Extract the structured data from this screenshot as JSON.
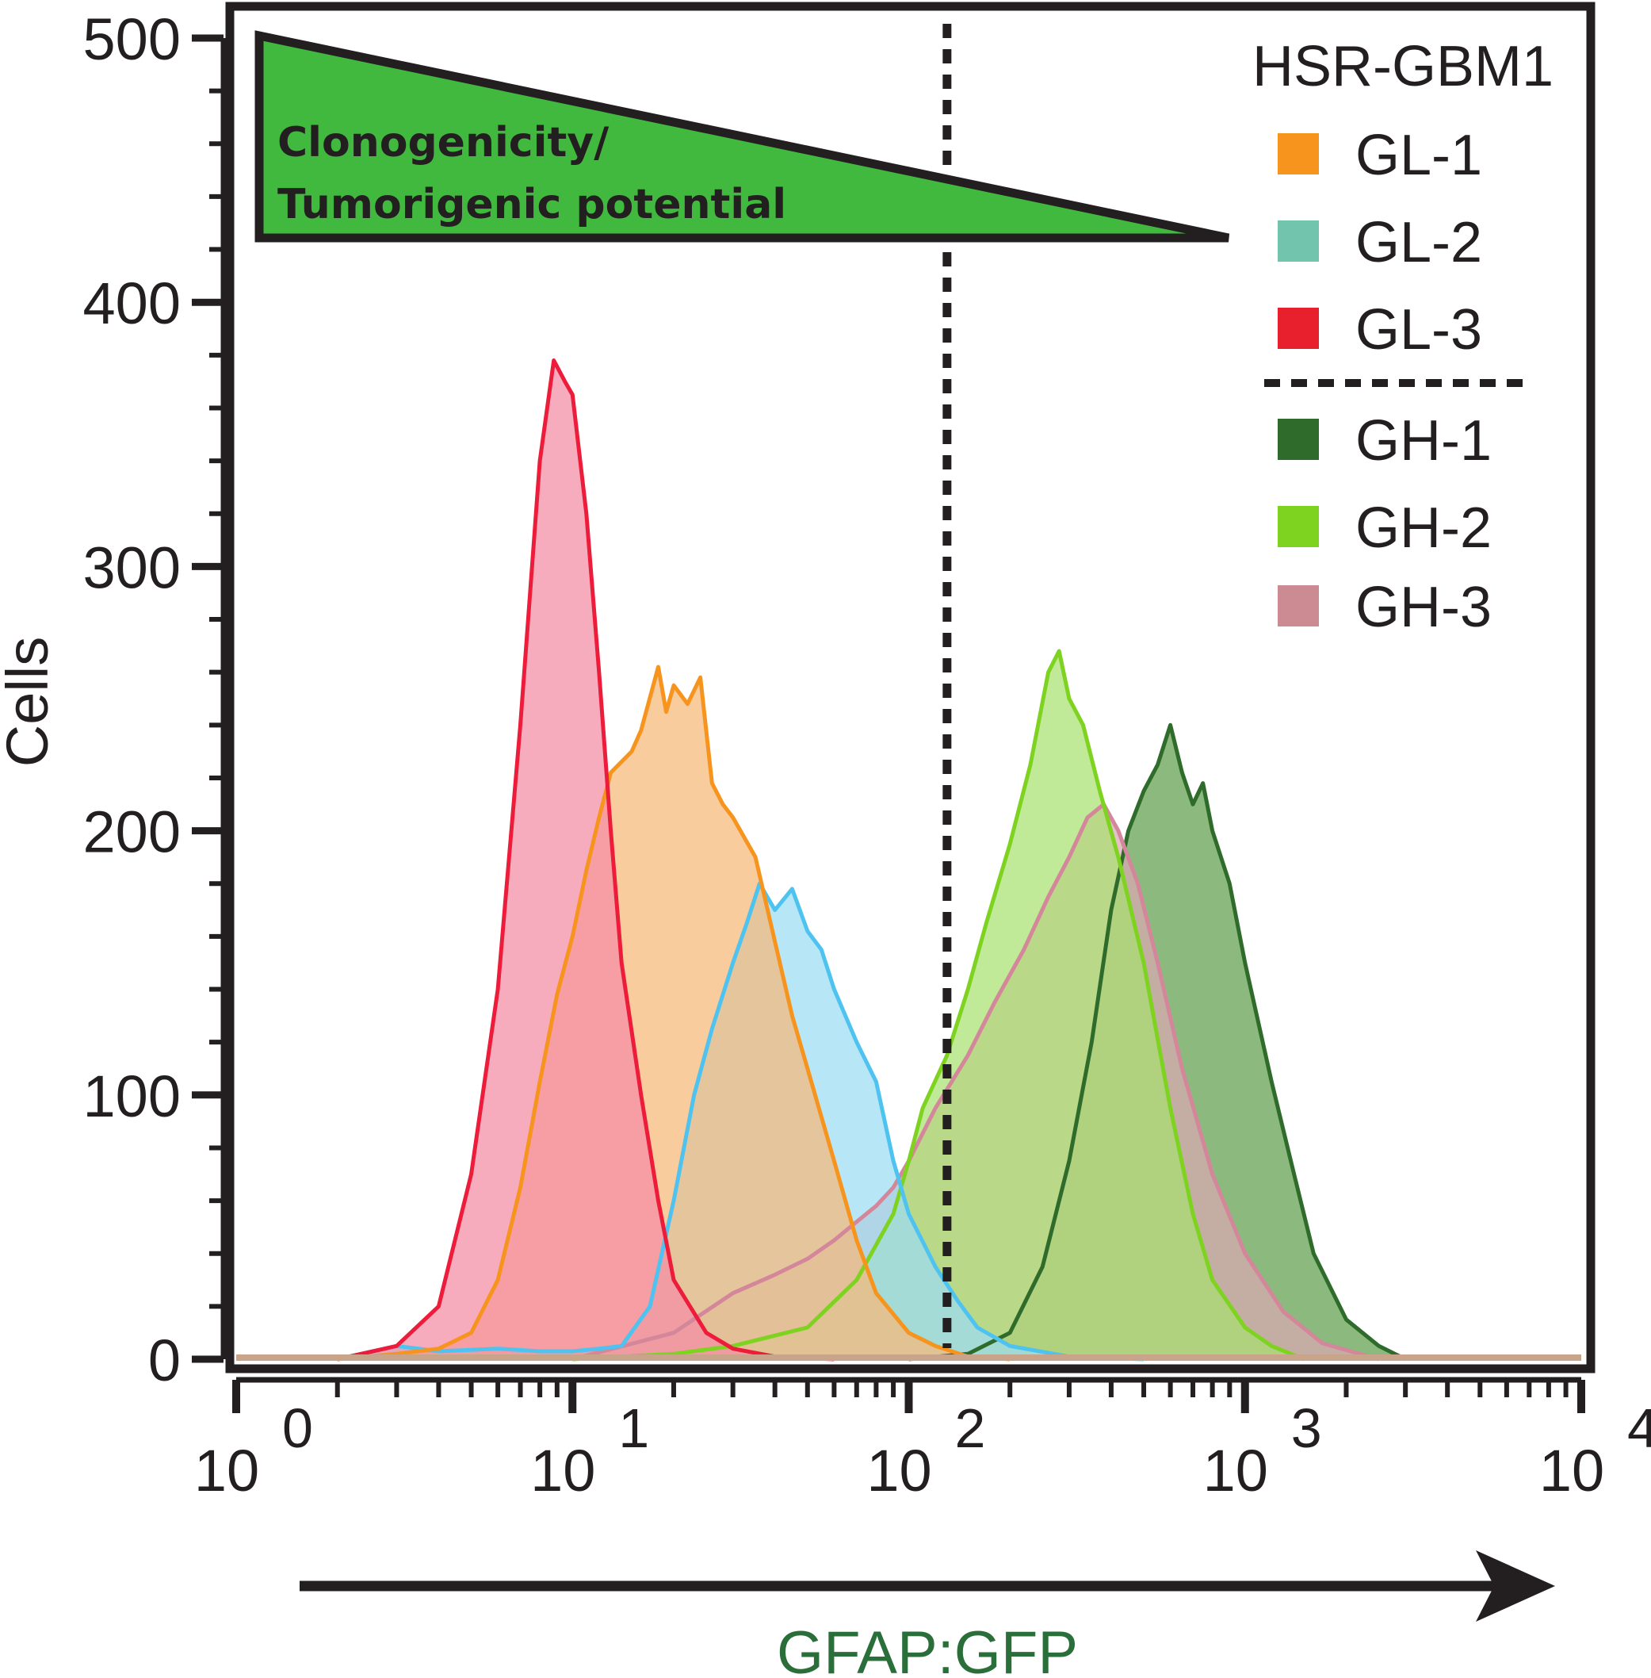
{
  "chart_data": {
    "type": "area",
    "title": "",
    "xlabel": "GFAP:GFP",
    "ylabel": "Cells",
    "xscale": "log",
    "xlim": [
      1,
      10000
    ],
    "ylim": [
      0,
      500
    ],
    "x_ticks": [
      {
        "base": "10",
        "exp": "0",
        "value": 1
      },
      {
        "base": "10",
        "exp": "1",
        "value": 10
      },
      {
        "base": "10",
        "exp": "2",
        "value": 100
      },
      {
        "base": "10",
        "exp": "3",
        "value": 1000
      },
      {
        "base": "10",
        "exp": "4",
        "value": 10000
      }
    ],
    "y_ticks": [
      "0",
      "100",
      "200",
      "300",
      "400",
      "500"
    ],
    "legend_title": "HSR-GBM1",
    "legend_position": "top-right",
    "annotation": {
      "line1": "Clonogenicity/",
      "line2": "Tumorigenic potential",
      "fill_color": "#41b83e"
    },
    "threshold_x": 130,
    "series": [
      {
        "name": "GL-1",
        "color": "#f7941d",
        "fill": "#f7b978",
        "points": [
          [
            2,
            0
          ],
          [
            3,
            2
          ],
          [
            4,
            4
          ],
          [
            5,
            10
          ],
          [
            6,
            30
          ],
          [
            7,
            65
          ],
          [
            8,
            105
          ],
          [
            9,
            138
          ],
          [
            10,
            160
          ],
          [
            11,
            185
          ],
          [
            12,
            205
          ],
          [
            13,
            222
          ],
          [
            15,
            230
          ],
          [
            16,
            238
          ],
          [
            18,
            262
          ],
          [
            19,
            245
          ],
          [
            20,
            255
          ],
          [
            22,
            248
          ],
          [
            24,
            258
          ],
          [
            26,
            218
          ],
          [
            28,
            210
          ],
          [
            30,
            205
          ],
          [
            35,
            190
          ],
          [
            40,
            158
          ],
          [
            45,
            130
          ],
          [
            50,
            110
          ],
          [
            60,
            75
          ],
          [
            70,
            45
          ],
          [
            80,
            25
          ],
          [
            100,
            10
          ],
          [
            120,
            5
          ],
          [
            150,
            1
          ],
          [
            200,
            0
          ]
        ]
      },
      {
        "name": "GL-2",
        "color": "#4fc3f0",
        "fill": "#9bdcf4",
        "points": [
          [
            2,
            0
          ],
          [
            3,
            5
          ],
          [
            4,
            3
          ],
          [
            6,
            4
          ],
          [
            8,
            3
          ],
          [
            10,
            3
          ],
          [
            12,
            4
          ],
          [
            14,
            5
          ],
          [
            17,
            20
          ],
          [
            20,
            60
          ],
          [
            23,
            100
          ],
          [
            26,
            125
          ],
          [
            30,
            150
          ],
          [
            33,
            165
          ],
          [
            36,
            180
          ],
          [
            40,
            170
          ],
          [
            45,
            178
          ],
          [
            50,
            162
          ],
          [
            55,
            155
          ],
          [
            60,
            140
          ],
          [
            70,
            120
          ],
          [
            80,
            105
          ],
          [
            90,
            75
          ],
          [
            100,
            55
          ],
          [
            120,
            35
          ],
          [
            140,
            22
          ],
          [
            160,
            12
          ],
          [
            200,
            5
          ],
          [
            300,
            1
          ],
          [
            500,
            0
          ]
        ]
      },
      {
        "name": "GL-3",
        "color": "#ec1c3a",
        "fill": "#f48ca5",
        "points": [
          [
            2,
            0
          ],
          [
            3,
            5
          ],
          [
            4,
            20
          ],
          [
            5,
            70
          ],
          [
            6,
            140
          ],
          [
            7,
            240
          ],
          [
            8,
            340
          ],
          [
            8.8,
            378
          ],
          [
            9.5,
            370
          ],
          [
            10,
            365
          ],
          [
            11,
            320
          ],
          [
            12,
            260
          ],
          [
            13,
            200
          ],
          [
            14,
            150
          ],
          [
            16,
            100
          ],
          [
            18,
            60
          ],
          [
            20,
            30
          ],
          [
            25,
            10
          ],
          [
            30,
            4
          ],
          [
            40,
            1
          ],
          [
            60,
            0
          ]
        ]
      },
      {
        "name": "GH-1",
        "color": "#2f6b2a",
        "fill": "#5f9e4c",
        "points": [
          [
            100,
            0
          ],
          [
            150,
            2
          ],
          [
            200,
            10
          ],
          [
            250,
            35
          ],
          [
            300,
            75
          ],
          [
            350,
            120
          ],
          [
            400,
            170
          ],
          [
            450,
            200
          ],
          [
            500,
            215
          ],
          [
            550,
            225
          ],
          [
            600,
            240
          ],
          [
            650,
            222
          ],
          [
            700,
            210
          ],
          [
            750,
            218
          ],
          [
            800,
            200
          ],
          [
            900,
            180
          ],
          [
            1000,
            150
          ],
          [
            1200,
            105
          ],
          [
            1400,
            70
          ],
          [
            1600,
            40
          ],
          [
            2000,
            15
          ],
          [
            2500,
            5
          ],
          [
            3000,
            0
          ]
        ]
      },
      {
        "name": "GH-2",
        "color": "#7ed321",
        "fill": "#a8e070",
        "points": [
          [
            10,
            0
          ],
          [
            20,
            2
          ],
          [
            30,
            5
          ],
          [
            50,
            12
          ],
          [
            70,
            30
          ],
          [
            90,
            55
          ],
          [
            100,
            75
          ],
          [
            110,
            95
          ],
          [
            130,
            115
          ],
          [
            150,
            140
          ],
          [
            170,
            165
          ],
          [
            200,
            195
          ],
          [
            230,
            225
          ],
          [
            260,
            260
          ],
          [
            280,
            268
          ],
          [
            300,
            250
          ],
          [
            330,
            240
          ],
          [
            370,
            215
          ],
          [
            420,
            190
          ],
          [
            500,
            150
          ],
          [
            600,
            95
          ],
          [
            700,
            55
          ],
          [
            800,
            30
          ],
          [
            1000,
            12
          ],
          [
            1200,
            5
          ],
          [
            1500,
            0
          ]
        ]
      },
      {
        "name": "GH-3",
        "color": "#d4879a",
        "fill": "#d9a9b2",
        "points": [
          [
            10,
            0
          ],
          [
            20,
            10
          ],
          [
            30,
            25
          ],
          [
            40,
            32
          ],
          [
            50,
            38
          ],
          [
            60,
            45
          ],
          [
            70,
            52
          ],
          [
            80,
            58
          ],
          [
            90,
            65
          ],
          [
            100,
            75
          ],
          [
            120,
            95
          ],
          [
            150,
            115
          ],
          [
            180,
            135
          ],
          [
            220,
            155
          ],
          [
            260,
            175
          ],
          [
            300,
            190
          ],
          [
            340,
            205
          ],
          [
            380,
            210
          ],
          [
            420,
            200
          ],
          [
            480,
            180
          ],
          [
            550,
            150
          ],
          [
            650,
            110
          ],
          [
            800,
            70
          ],
          [
            1000,
            40
          ],
          [
            1300,
            18
          ],
          [
            1700,
            6
          ],
          [
            2500,
            0
          ]
        ]
      }
    ]
  }
}
